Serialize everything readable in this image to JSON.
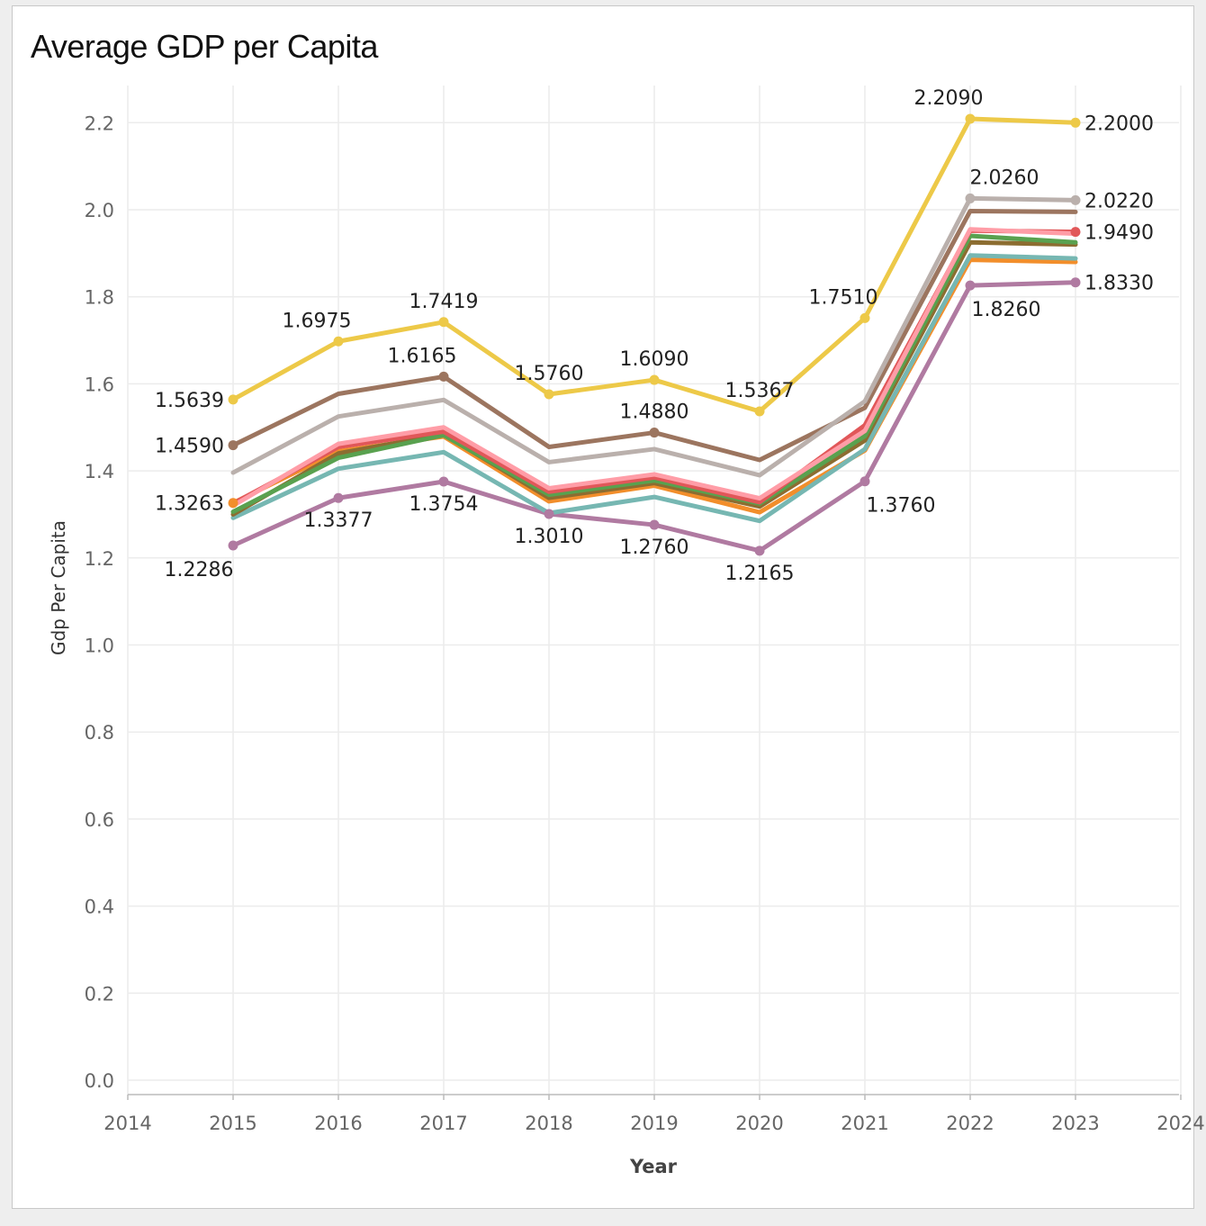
{
  "chart_data": {
    "type": "line",
    "title": "Average GDP per Capita",
    "xlabel": "Year",
    "ylabel": "Gdp Per Capita",
    "xlim": [
      2014,
      2024
    ],
    "ylim": [
      0,
      2.28
    ],
    "x_ticks": [
      "2014",
      "2015",
      "2016",
      "2017",
      "2018",
      "2019",
      "2020",
      "2021",
      "2022",
      "2023",
      "2024"
    ],
    "y_ticks": [
      "0.0",
      "0.2",
      "0.4",
      "0.6",
      "0.8",
      "1.0",
      "1.2",
      "1.4",
      "1.6",
      "1.8",
      "2.0",
      "2.2"
    ],
    "grid": true,
    "legend": "none",
    "x": [
      2015,
      2016,
      2017,
      2018,
      2019,
      2020,
      2021,
      2022,
      2023
    ],
    "series": [
      {
        "color": "#edc948",
        "values": [
          1.5639,
          1.6975,
          1.7419,
          1.576,
          1.609,
          1.5367,
          1.751,
          2.209,
          2.2
        ]
      },
      {
        "color": "#bab0ac",
        "values": [
          1.396,
          1.525,
          1.563,
          1.42,
          1.45,
          1.39,
          1.56,
          2.026,
          2.022
        ]
      },
      {
        "color": "#9c755f",
        "values": [
          1.459,
          1.577,
          1.6165,
          1.455,
          1.488,
          1.425,
          1.545,
          1.997,
          1.995
        ]
      },
      {
        "color": "#ff9da7",
        "values": [
          1.32,
          1.462,
          1.5,
          1.36,
          1.392,
          1.337,
          1.492,
          1.955,
          1.945
        ]
      },
      {
        "color": "#e15759",
        "values": [
          1.325,
          1.455,
          1.49,
          1.352,
          1.385,
          1.328,
          1.505,
          1.952,
          1.949
        ]
      },
      {
        "color": "#59a14f",
        "values": [
          1.306,
          1.43,
          1.482,
          1.345,
          1.378,
          1.325,
          1.48,
          1.94,
          1.925
        ]
      },
      {
        "color": "#8c6d31",
        "values": [
          1.3,
          1.44,
          1.484,
          1.338,
          1.372,
          1.318,
          1.47,
          1.925,
          1.92
        ]
      },
      {
        "color": "#76b7b2",
        "values": [
          1.292,
          1.405,
          1.443,
          1.303,
          1.34,
          1.285,
          1.45,
          1.895,
          1.888
        ]
      },
      {
        "color": "#f28e2b",
        "values": [
          1.3263,
          1.445,
          1.479,
          1.33,
          1.366,
          1.305,
          1.447,
          1.885,
          1.88
        ]
      },
      {
        "color": "#b07aa1",
        "values": [
          1.2286,
          1.3377,
          1.3754,
          1.301,
          1.276,
          1.2165,
          1.376,
          1.826,
          1.833
        ]
      }
    ],
    "data_labels": [
      {
        "text": "1.5639",
        "x": 2015,
        "y": 1.5639,
        "pos": "left"
      },
      {
        "text": "1.6975",
        "x": 2016,
        "y": 1.6975,
        "pos": "above-left"
      },
      {
        "text": "1.7419",
        "x": 2017,
        "y": 1.7419,
        "pos": "above"
      },
      {
        "text": "1.5760",
        "x": 2018,
        "y": 1.576,
        "pos": "above"
      },
      {
        "text": "1.6090",
        "x": 2019,
        "y": 1.609,
        "pos": "above"
      },
      {
        "text": "1.5367",
        "x": 2020,
        "y": 1.5367,
        "pos": "above"
      },
      {
        "text": "1.7510",
        "x": 2021,
        "y": 1.751,
        "pos": "above-left"
      },
      {
        "text": "2.2090",
        "x": 2022,
        "y": 2.209,
        "pos": "above-left"
      },
      {
        "text": "2.2000",
        "x": 2023,
        "y": 2.2,
        "pos": "right"
      },
      {
        "text": "2.0260",
        "x": 2022,
        "y": 2.026,
        "pos": "above-right"
      },
      {
        "text": "2.0220",
        "x": 2023,
        "y": 2.022,
        "pos": "right"
      },
      {
        "text": "1.4590",
        "x": 2015,
        "y": 1.459,
        "pos": "left"
      },
      {
        "text": "1.6165",
        "x": 2017,
        "y": 1.6165,
        "pos": "above-left"
      },
      {
        "text": "1.4880",
        "x": 2019,
        "y": 1.488,
        "pos": "above"
      },
      {
        "text": "1.9490",
        "x": 2023,
        "y": 1.949,
        "pos": "right"
      },
      {
        "text": "1.3263",
        "x": 2015,
        "y": 1.3263,
        "pos": "left"
      },
      {
        "text": "1.2286",
        "x": 2015,
        "y": 1.2286,
        "pos": "below-left"
      },
      {
        "text": "1.3377",
        "x": 2016,
        "y": 1.3377,
        "pos": "below"
      },
      {
        "text": "1.3754",
        "x": 2017,
        "y": 1.3754,
        "pos": "below"
      },
      {
        "text": "1.3010",
        "x": 2018,
        "y": 1.301,
        "pos": "below"
      },
      {
        "text": "1.2760",
        "x": 2019,
        "y": 1.276,
        "pos": "below"
      },
      {
        "text": "1.2165",
        "x": 2020,
        "y": 1.2165,
        "pos": "below"
      },
      {
        "text": "1.3760",
        "x": 2021,
        "y": 1.376,
        "pos": "below-right"
      },
      {
        "text": "1.8260",
        "x": 2022,
        "y": 1.826,
        "pos": "below-right"
      },
      {
        "text": "1.8330",
        "x": 2023,
        "y": 1.833,
        "pos": "right"
      }
    ]
  }
}
